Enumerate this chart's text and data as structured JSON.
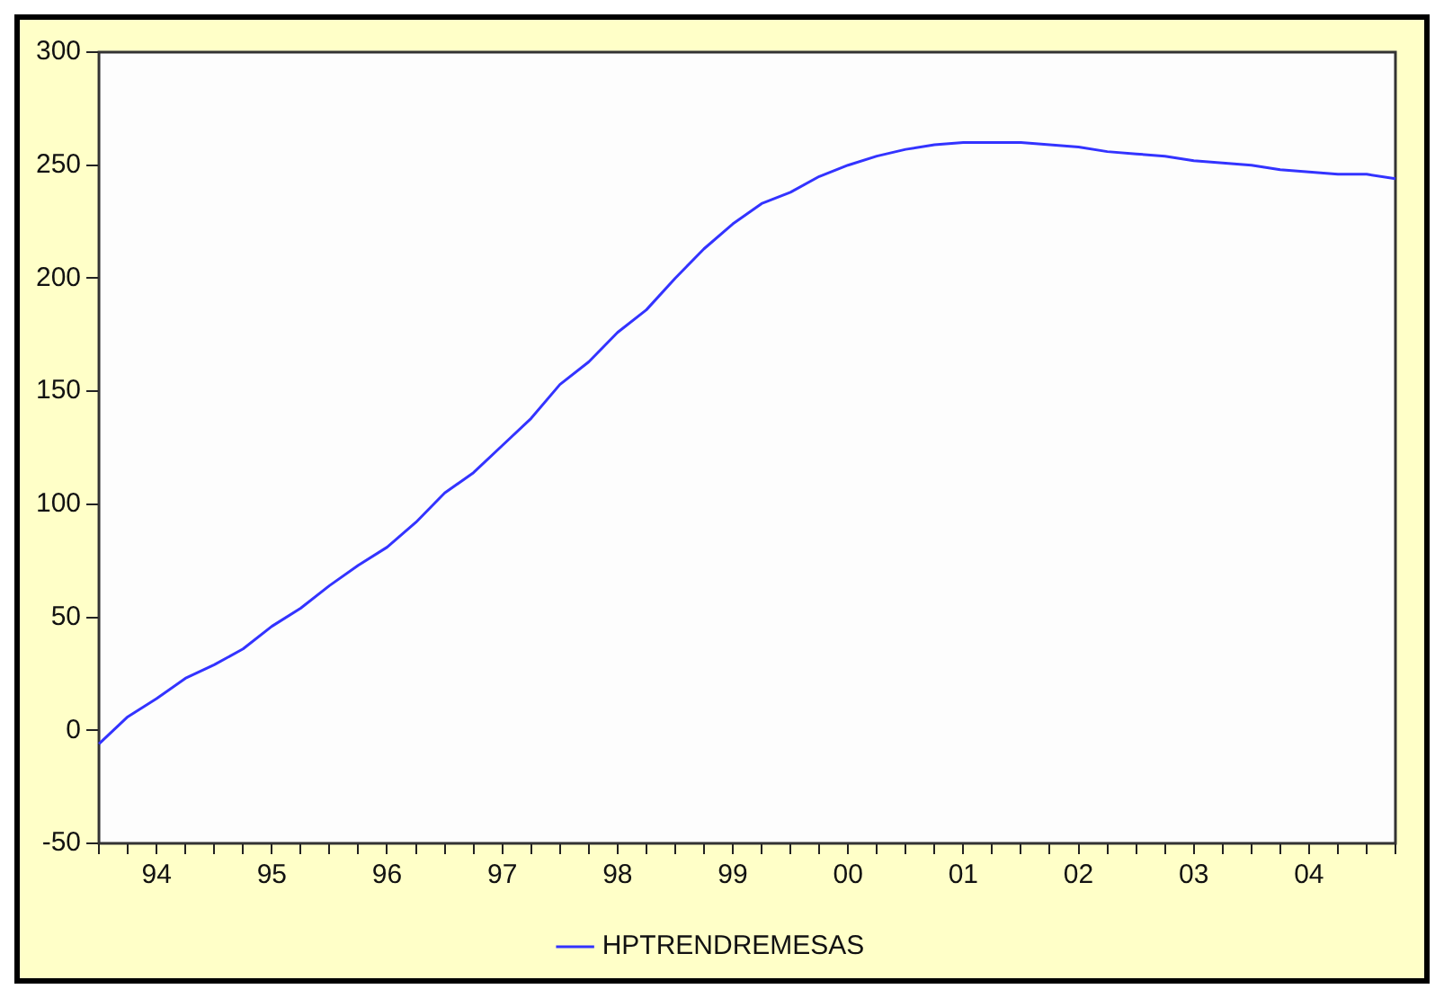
{
  "chart_data": {
    "type": "line",
    "categories": [
      null,
      null,
      "94",
      null,
      null,
      null,
      "95",
      null,
      null,
      null,
      "96",
      null,
      null,
      null,
      "97",
      null,
      null,
      null,
      "98",
      null,
      null,
      null,
      "99",
      null,
      null,
      null,
      "00",
      null,
      null,
      null,
      "01",
      null,
      null,
      null,
      "02",
      null,
      null,
      null,
      "03",
      null,
      null,
      null,
      "04",
      null,
      null,
      null
    ],
    "series": [
      {
        "name": "HPTRENDREMESAS",
        "color": "#3333ff",
        "values": [
          -6,
          6,
          14,
          23,
          29,
          36,
          46,
          54,
          64,
          73,
          81,
          92,
          105,
          114,
          126,
          138,
          153,
          163,
          176,
          186,
          200,
          213,
          224,
          233,
          238,
          245,
          250,
          254,
          257,
          259,
          260,
          260,
          260,
          259,
          258,
          256,
          255,
          254,
          252,
          251,
          250,
          248,
          247,
          246,
          246,
          244
        ]
      }
    ],
    "ylim": [
      -50,
      300
    ],
    "yticks": [
      -50,
      0,
      50,
      100,
      150,
      200,
      250,
      300
    ],
    "grid": false,
    "legend": "bottom",
    "marker": "none",
    "line_style": "solid"
  }
}
